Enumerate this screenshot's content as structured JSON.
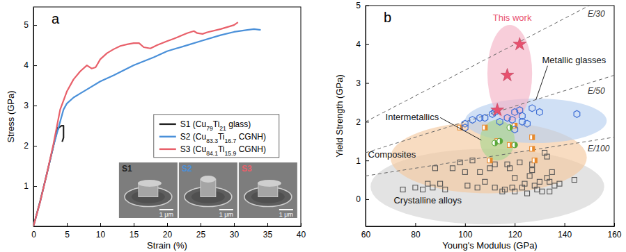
{
  "chart_data": [
    {
      "type": "line",
      "panel": "a",
      "xlabel": "Strain (%)",
      "ylabel": "Stress (GPa)",
      "xlim": [
        0,
        40
      ],
      "xticks": [
        0,
        5,
        10,
        15,
        20,
        25,
        30,
        35,
        40
      ],
      "ylim": [
        0,
        5.45
      ],
      "yticks": [
        1,
        2,
        3,
        4,
        5
      ],
      "legend": "center",
      "series": [
        {
          "name": "S1 (Cu79Ti21 glass)",
          "color": "#222222",
          "x": [
            0,
            1,
            2,
            3,
            3.4,
            3.6,
            3.3,
            3.5,
            3.8,
            4.2,
            4.5,
            4.5,
            4.3
          ],
          "values": [
            0,
            0.62,
            1.3,
            2.0,
            2.3,
            2.45,
            2.2,
            2.35,
            2.45,
            2.5,
            2.5,
            2.2,
            2.1
          ]
        },
        {
          "name": "S2 (Cu83.3Ti16.7 CGNH)",
          "color": "#4a90d9",
          "x": [
            0,
            1,
            2,
            3,
            4,
            4.5,
            5,
            6,
            7,
            8,
            10,
            12,
            15,
            18,
            20,
            23,
            25,
            28,
            30,
            32,
            33,
            34
          ],
          "values": [
            0,
            0.6,
            1.3,
            2.0,
            2.6,
            2.9,
            3.05,
            3.2,
            3.3,
            3.4,
            3.6,
            3.75,
            4.0,
            4.2,
            4.35,
            4.5,
            4.6,
            4.75,
            4.83,
            4.88,
            4.9,
            4.88
          ]
        },
        {
          "name": "S3 (Cu84.1Ti15.9 CGNH)",
          "color": "#e8606a",
          "x": [
            0,
            1,
            2,
            3,
            4,
            5,
            6,
            7,
            8,
            8.7,
            9.3,
            10,
            11,
            12,
            13,
            14,
            15,
            15.8,
            16.5,
            17.5,
            18.5,
            20,
            21,
            22,
            23,
            24,
            24.5,
            25.3,
            26,
            28,
            30,
            30.6
          ],
          "values": [
            0,
            0.6,
            1.3,
            2.05,
            2.9,
            3.35,
            3.65,
            3.85,
            4.0,
            3.92,
            3.95,
            4.15,
            4.3,
            4.4,
            4.48,
            4.52,
            4.55,
            4.55,
            4.45,
            4.42,
            4.5,
            4.6,
            4.66,
            4.73,
            4.8,
            4.85,
            4.8,
            4.78,
            4.82,
            4.9,
            5.0,
            5.07
          ]
        }
      ],
      "insets": [
        {
          "label": "S1",
          "scale_bar": "1 μm"
        },
        {
          "label": "S2",
          "scale_bar": "1 μm"
        },
        {
          "label": "S3",
          "scale_bar": "1 μm"
        }
      ]
    },
    {
      "type": "scatter",
      "panel": "b",
      "xlabel": "Young's Modulus (GPa)",
      "ylabel": "Yield Strength (GPa)",
      "xlim": [
        60,
        160
      ],
      "xticks": [
        60,
        80,
        100,
        120,
        140,
        160
      ],
      "ylim": [
        -0.7,
        5
      ],
      "yticks": [
        0,
        1,
        2,
        3,
        4,
        5
      ],
      "series": [
        {
          "name": "Crystalline alloys",
          "color": "#555555",
          "marker": "square",
          "region_x": [
            62,
            156
          ],
          "region_y": [
            -0.65,
            1.3
          ],
          "region_color": "#d4d4d4",
          "x": [
            75,
            80,
            83,
            85,
            87,
            88,
            90,
            92,
            95,
            98,
            100,
            101,
            103,
            105,
            106,
            108,
            110,
            112,
            112,
            115,
            116,
            117,
            118,
            119,
            120,
            120,
            122,
            123,
            124,
            125,
            126,
            127,
            127,
            128,
            129,
            130,
            131,
            132,
            133,
            133,
            134,
            134,
            135,
            136,
            138,
            144
          ],
          "values": [
            0.25,
            0.3,
            0.25,
            0.4,
            0.3,
            0.8,
            0.4,
            0.25,
            0.8,
            0.95,
            0.7,
            0.35,
            1.0,
            0.3,
            0.7,
            0.45,
            0.8,
            0.3,
            0.9,
            0.2,
            0.25,
            0.9,
            0.8,
            0.3,
            0.2,
            0.55,
            0.95,
            0.3,
            0.4,
            0.15,
            0.6,
            0.75,
            0.9,
            0.35,
            0.25,
            0.45,
            0.2,
            1.2,
            1.1,
            0.55,
            0.45,
            0.2,
            0.7,
            0.35,
            0.4,
            0.5
          ]
        },
        {
          "name": "Composites",
          "color": "#e8892b",
          "marker": "half-square",
          "region_x": [
            70,
            149
          ],
          "region_y": [
            0.15,
            2.0
          ],
          "region_color": "#f5c9a0",
          "x": [
            98,
            108,
            110,
            113,
            118,
            120,
            127,
            127,
            128
          ],
          "values": [
            1.85,
            1.85,
            1.0,
            1.5,
            1.4,
            1.9,
            1.6,
            1.3,
            1.0
          ]
        },
        {
          "name": "Metallic glasses",
          "color": "#3f6fd6",
          "marker": "hexagon",
          "region_x": [
            100,
            157
          ],
          "region_y": [
            1.45,
            2.6
          ],
          "region_color": "#b7d0f0",
          "x": [
            100,
            100,
            103,
            106,
            108,
            111,
            112,
            114,
            117,
            119,
            120,
            120,
            122,
            123,
            123,
            125,
            127,
            130,
            145
          ],
          "values": [
            1.95,
            1.85,
            2.05,
            2.1,
            2.1,
            2.2,
            2.25,
            2.0,
            2.1,
            2.05,
            2.25,
            1.8,
            2.3,
            2.0,
            2.15,
            1.95,
            2.35,
            2.25,
            2.2
          ]
        },
        {
          "name": "Intermetallics",
          "color": "#5aa83a",
          "marker": "half-circle",
          "region_x": [
            106,
            120
          ],
          "region_y": [
            1.0,
            2.05
          ],
          "region_color": "#a9d68f",
          "x": [
            112,
            114,
            118,
            120
          ],
          "values": [
            1.45,
            1.5,
            1.85,
            1.4
          ]
        },
        {
          "name": "This work",
          "color": "#e8506e",
          "marker": "star",
          "region_x": [
            109,
            127
          ],
          "region_y": [
            2.0,
            4.5
          ],
          "region_color": "#f5b3c6",
          "x": [
            113,
            117,
            122
          ],
          "values": [
            2.3,
            3.2,
            4.0
          ]
        }
      ],
      "reference_lines": [
        {
          "divisor": 30,
          "label": "E/30"
        },
        {
          "divisor": 50,
          "label": "E/50"
        },
        {
          "divisor": 100,
          "label": "E/100"
        }
      ]
    }
  ]
}
